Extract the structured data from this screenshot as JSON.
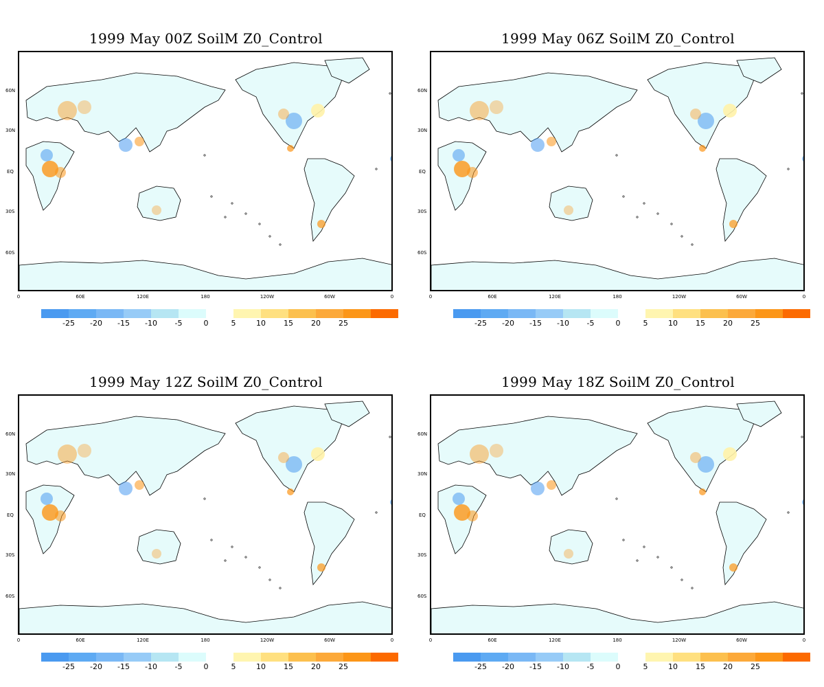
{
  "panels": [
    {
      "title": "1999 May  00Z SoilM Z0_Control"
    },
    {
      "title": "1999  May 06Z SoilM Z0_Control"
    },
    {
      "title": "1999  May 12Z SoilM Z0_Control"
    },
    {
      "title": "1999  May 18Z SoilM Z0_Control"
    }
  ],
  "lat_labels": [
    "60N",
    "30N",
    "EQ",
    "30S",
    "60S"
  ],
  "lon_labels": [
    "0",
    "60E",
    "120E",
    "180",
    "120W",
    "60W",
    "0"
  ],
  "colorbar": {
    "negative": {
      "colors": [
        "#4a9af0",
        "#5eaaf3",
        "#7ab8f5",
        "#97cbf7",
        "#b6e6f3",
        "#dcfcfc"
      ],
      "labels": [
        "-25",
        "-20",
        "-15",
        "-10",
        "-5",
        "0"
      ]
    },
    "positive": {
      "colors": [
        "#fff5b0",
        "#ffe080",
        "#fcc04e",
        "#fca93a",
        "#fc9618",
        "#fc6a00"
      ],
      "labels": [
        "5",
        "10",
        "15",
        "20",
        "25"
      ]
    }
  },
  "map_colors": {
    "land_fill": "#e6fbfb",
    "coast": "#000000",
    "dry": "#4a9af0",
    "wet": "#fc9618"
  }
}
